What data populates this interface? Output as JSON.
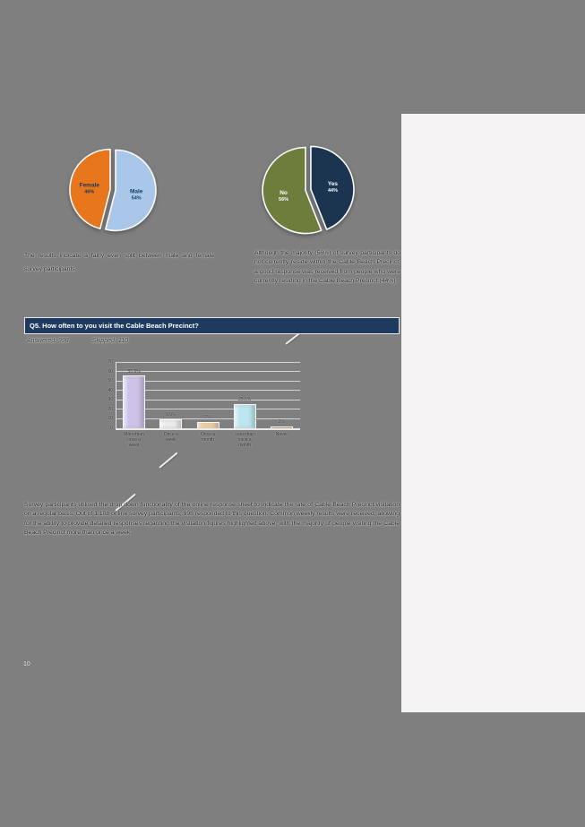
{
  "page": {
    "background_color": "#7f7f7f",
    "page_number": "10"
  },
  "accent_colors": {
    "header_bar": "#1e3a5f",
    "side_panel": "#f5f3f4"
  },
  "captions": {
    "left": "The results indicate a fairly even split between male and female survey participants.",
    "right": "Although the majority (56%) of survey participants do not currently reside within the Cable Beach Precinct, a good response was received from people who were currently residing in the Cable Beach Precinct (44%)."
  },
  "question": {
    "header": "Q5. How often to you visit the Cable Beach Precinct?",
    "answered_label": "Answered: 998",
    "skipped_label": "Skipped: 110"
  },
  "paragraph": "Survey participants utilised the drop down functionality of the online response sheet to indicate the rate of Cable Beach Precinct visitation on a regular basis. Out of 1,108 online survey participants, 998 responded to this question. Common weekly results were received, allowing for the ability to provide detailed responses regarding the visitation figures highlighted above, with the majority of people visiting the Cable Beach Precinct more than once a week.",
  "chart_data": [
    {
      "type": "pie",
      "name": "gender-split",
      "title": "",
      "labels": [
        "Male",
        "Female"
      ],
      "values": [
        54,
        46
      ],
      "value_labels": [
        "54%",
        "46%"
      ],
      "colors": [
        "#a9c7e9",
        "#e8761d"
      ],
      "label_text_color": "#17375e",
      "legend_position": "none"
    },
    {
      "type": "pie",
      "name": "reside-in-precinct",
      "title": "",
      "labels": [
        "Yes",
        "No"
      ],
      "values": [
        44,
        56
      ],
      "value_labels": [
        "44%",
        "56%"
      ],
      "colors": [
        "#1b3550",
        "#6d7d3c"
      ],
      "label_text_color": "#ffffff",
      "legend_position": "none"
    },
    {
      "type": "bar",
      "name": "visit-frequency",
      "title": "",
      "categories": [
        "More than\nonce a\nweek",
        "Once a\nweek",
        "Once a\nmonth",
        "Less than\nonce a\nmonth",
        "Never"
      ],
      "values": [
        55.6,
        9.9,
        7.0,
        25.6,
        2.0
      ],
      "value_labels": [
        "55.6%",
        "9.9%",
        "7%",
        "25.6%",
        "2%"
      ],
      "bar_colors": [
        "#cdc3e8",
        "#ededed",
        "#f3cf9f",
        "#bce6ef",
        "#b9662c"
      ],
      "xlabel": "",
      "ylabel": "",
      "ylim": [
        0,
        70
      ],
      "yticks": [
        0,
        10,
        20,
        30,
        40,
        50,
        60,
        70
      ],
      "grid": true,
      "legend_position": "none"
    }
  ]
}
